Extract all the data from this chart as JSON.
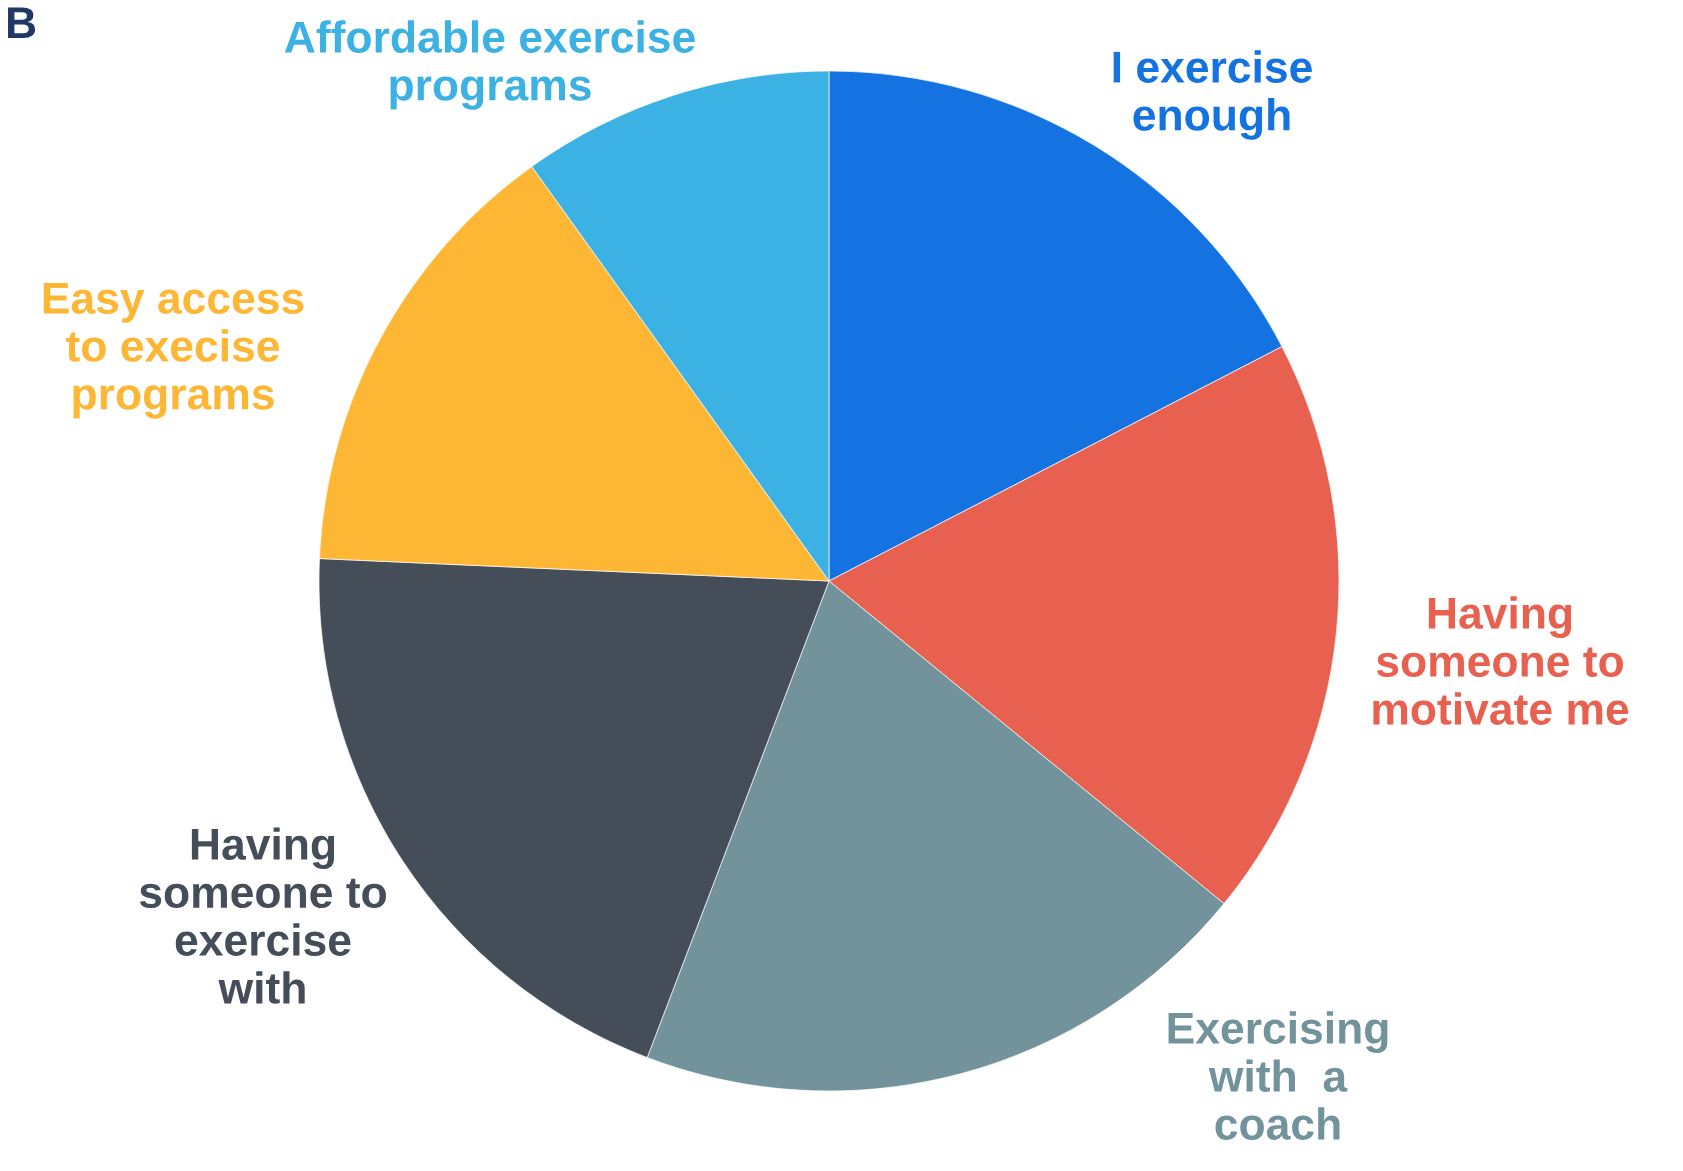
{
  "chart_data": {
    "type": "pie",
    "categories": [
      "I exercise\nenough",
      "Having\nsomeone to\nmotivate me",
      "Exercising\nwith  a\ncoach",
      "Having\nsomeone to\nexercise\nwith",
      "Easy access\nto execise\nprograms",
      "Affordable exercise\nprograms"
    ],
    "values": [
      17.4,
      18.5,
      19.9,
      19.9,
      14.4,
      9.9
    ],
    "colors": [
      "#1473e0",
      "#e86050",
      "#72939b",
      "#454d58",
      "#fdb734",
      "#3cb1e3"
    ],
    "annotations": [
      "B"
    ]
  }
}
